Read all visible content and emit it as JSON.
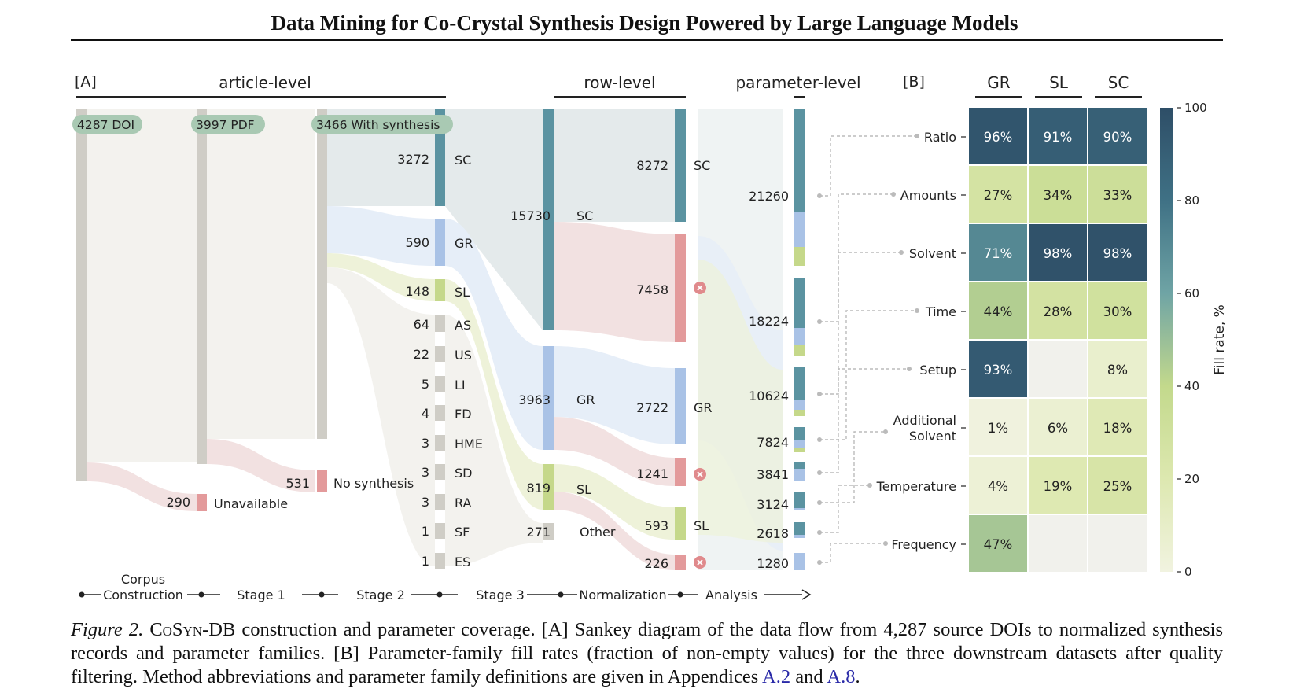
{
  "header": {
    "title": "Data Mining for Co-Crystal Synthesis Design Powered by Large Language Models"
  },
  "panel_a": {
    "label": "[A]",
    "levels": {
      "article": "article-level",
      "row": "row-level",
      "parameter": "parameter-level"
    },
    "badges": {
      "doi": "4287 DOI",
      "pdf": "3997 PDF",
      "synth": "3466 With synthesis"
    },
    "counts": {
      "unavailable": "290",
      "unavailable_label": "Unavailable",
      "no_synth": "531",
      "no_synth_label": "No synthesis"
    },
    "methods": [
      {
        "n": "3272",
        "code": "SC"
      },
      {
        "n": "590",
        "code": "GR"
      },
      {
        "n": "148",
        "code": "SL"
      },
      {
        "n": "64",
        "code": "AS"
      },
      {
        "n": "22",
        "code": "US"
      },
      {
        "n": "5",
        "code": "LI"
      },
      {
        "n": "4",
        "code": "FD"
      },
      {
        "n": "3",
        "code": "HME"
      },
      {
        "n": "3",
        "code": "SD"
      },
      {
        "n": "3",
        "code": "RA"
      },
      {
        "n": "1",
        "code": "SF"
      },
      {
        "n": "1",
        "code": "ES"
      }
    ],
    "rows": [
      {
        "n": "15730",
        "code": "SC"
      },
      {
        "n": "3963",
        "code": "GR"
      },
      {
        "n": "819",
        "code": "SL"
      },
      {
        "n": "271",
        "code": "Other"
      }
    ],
    "norm": [
      {
        "n": "8272",
        "code": "SC"
      },
      {
        "n": "7458",
        "code": ""
      },
      {
        "n": "2722",
        "code": "GR"
      },
      {
        "n": "1241",
        "code": ""
      },
      {
        "n": "593",
        "code": "SL"
      },
      {
        "n": "226",
        "code": ""
      }
    ],
    "params": [
      "21260",
      "18224",
      "10624",
      "7824",
      "3841",
      "3124",
      "2618",
      "1280"
    ],
    "stages": [
      "Corpus",
      "Construction",
      "Stage 1",
      "Stage 2",
      "Stage 3",
      "Normalization",
      "Analysis"
    ],
    "colors": {
      "sc": "#5b93a1",
      "gr": "#a9c2e6",
      "sl": "#c5d88a",
      "red": "#e39a9b",
      "grey": "#cfcdc6",
      "badge": "#a9c9b3"
    }
  },
  "panel_b": {
    "label": "[B]",
    "columns": [
      "GR",
      "SL",
      "SC"
    ],
    "rows": [
      {
        "name": "Ratio",
        "values": [
          "96%",
          "91%",
          "90%"
        ],
        "fill": [
          96,
          91,
          90
        ]
      },
      {
        "name": "Amounts",
        "values": [
          "27%",
          "34%",
          "33%"
        ],
        "fill": [
          27,
          34,
          33
        ]
      },
      {
        "name": "Solvent",
        "values": [
          "71%",
          "98%",
          "98%"
        ],
        "fill": [
          71,
          98,
          98
        ]
      },
      {
        "name": "Time",
        "values": [
          "44%",
          "28%",
          "30%"
        ],
        "fill": [
          44,
          28,
          30
        ]
      },
      {
        "name": "Setup",
        "values": [
          "93%",
          "",
          "8%"
        ],
        "fill": [
          93,
          null,
          8
        ]
      },
      {
        "name": "Additional Solvent",
        "values": [
          "1%",
          "6%",
          "18%"
        ],
        "fill": [
          1,
          6,
          18
        ]
      },
      {
        "name": "Temperature",
        "values": [
          "4%",
          "19%",
          "25%"
        ],
        "fill": [
          4,
          19,
          25
        ]
      },
      {
        "name": "Frequency",
        "values": [
          "47%",
          "",
          ""
        ],
        "fill": [
          47,
          null,
          null
        ]
      }
    ],
    "colorbar": {
      "label": "Fill rate, %",
      "ticks": [
        "100",
        "80",
        "60",
        "40",
        "20",
        "0"
      ]
    }
  },
  "caption": {
    "fig_label": "Figure 2.",
    "name": "CoSyn",
    "text1": "-DB construction and parameter coverage. [A] Sankey diagram of the data flow from 4,287 source DOIs to normalized synthesis records and parameter families. [B] Parameter-family fill rates (fraction of non-empty values) for the three downstream datasets after quality filtering. Method abbreviations and parameter family definitions are given in Appendices ",
    "ref1": "A.2",
    "text2": " and ",
    "ref2": "A.8",
    "text3": "."
  }
}
